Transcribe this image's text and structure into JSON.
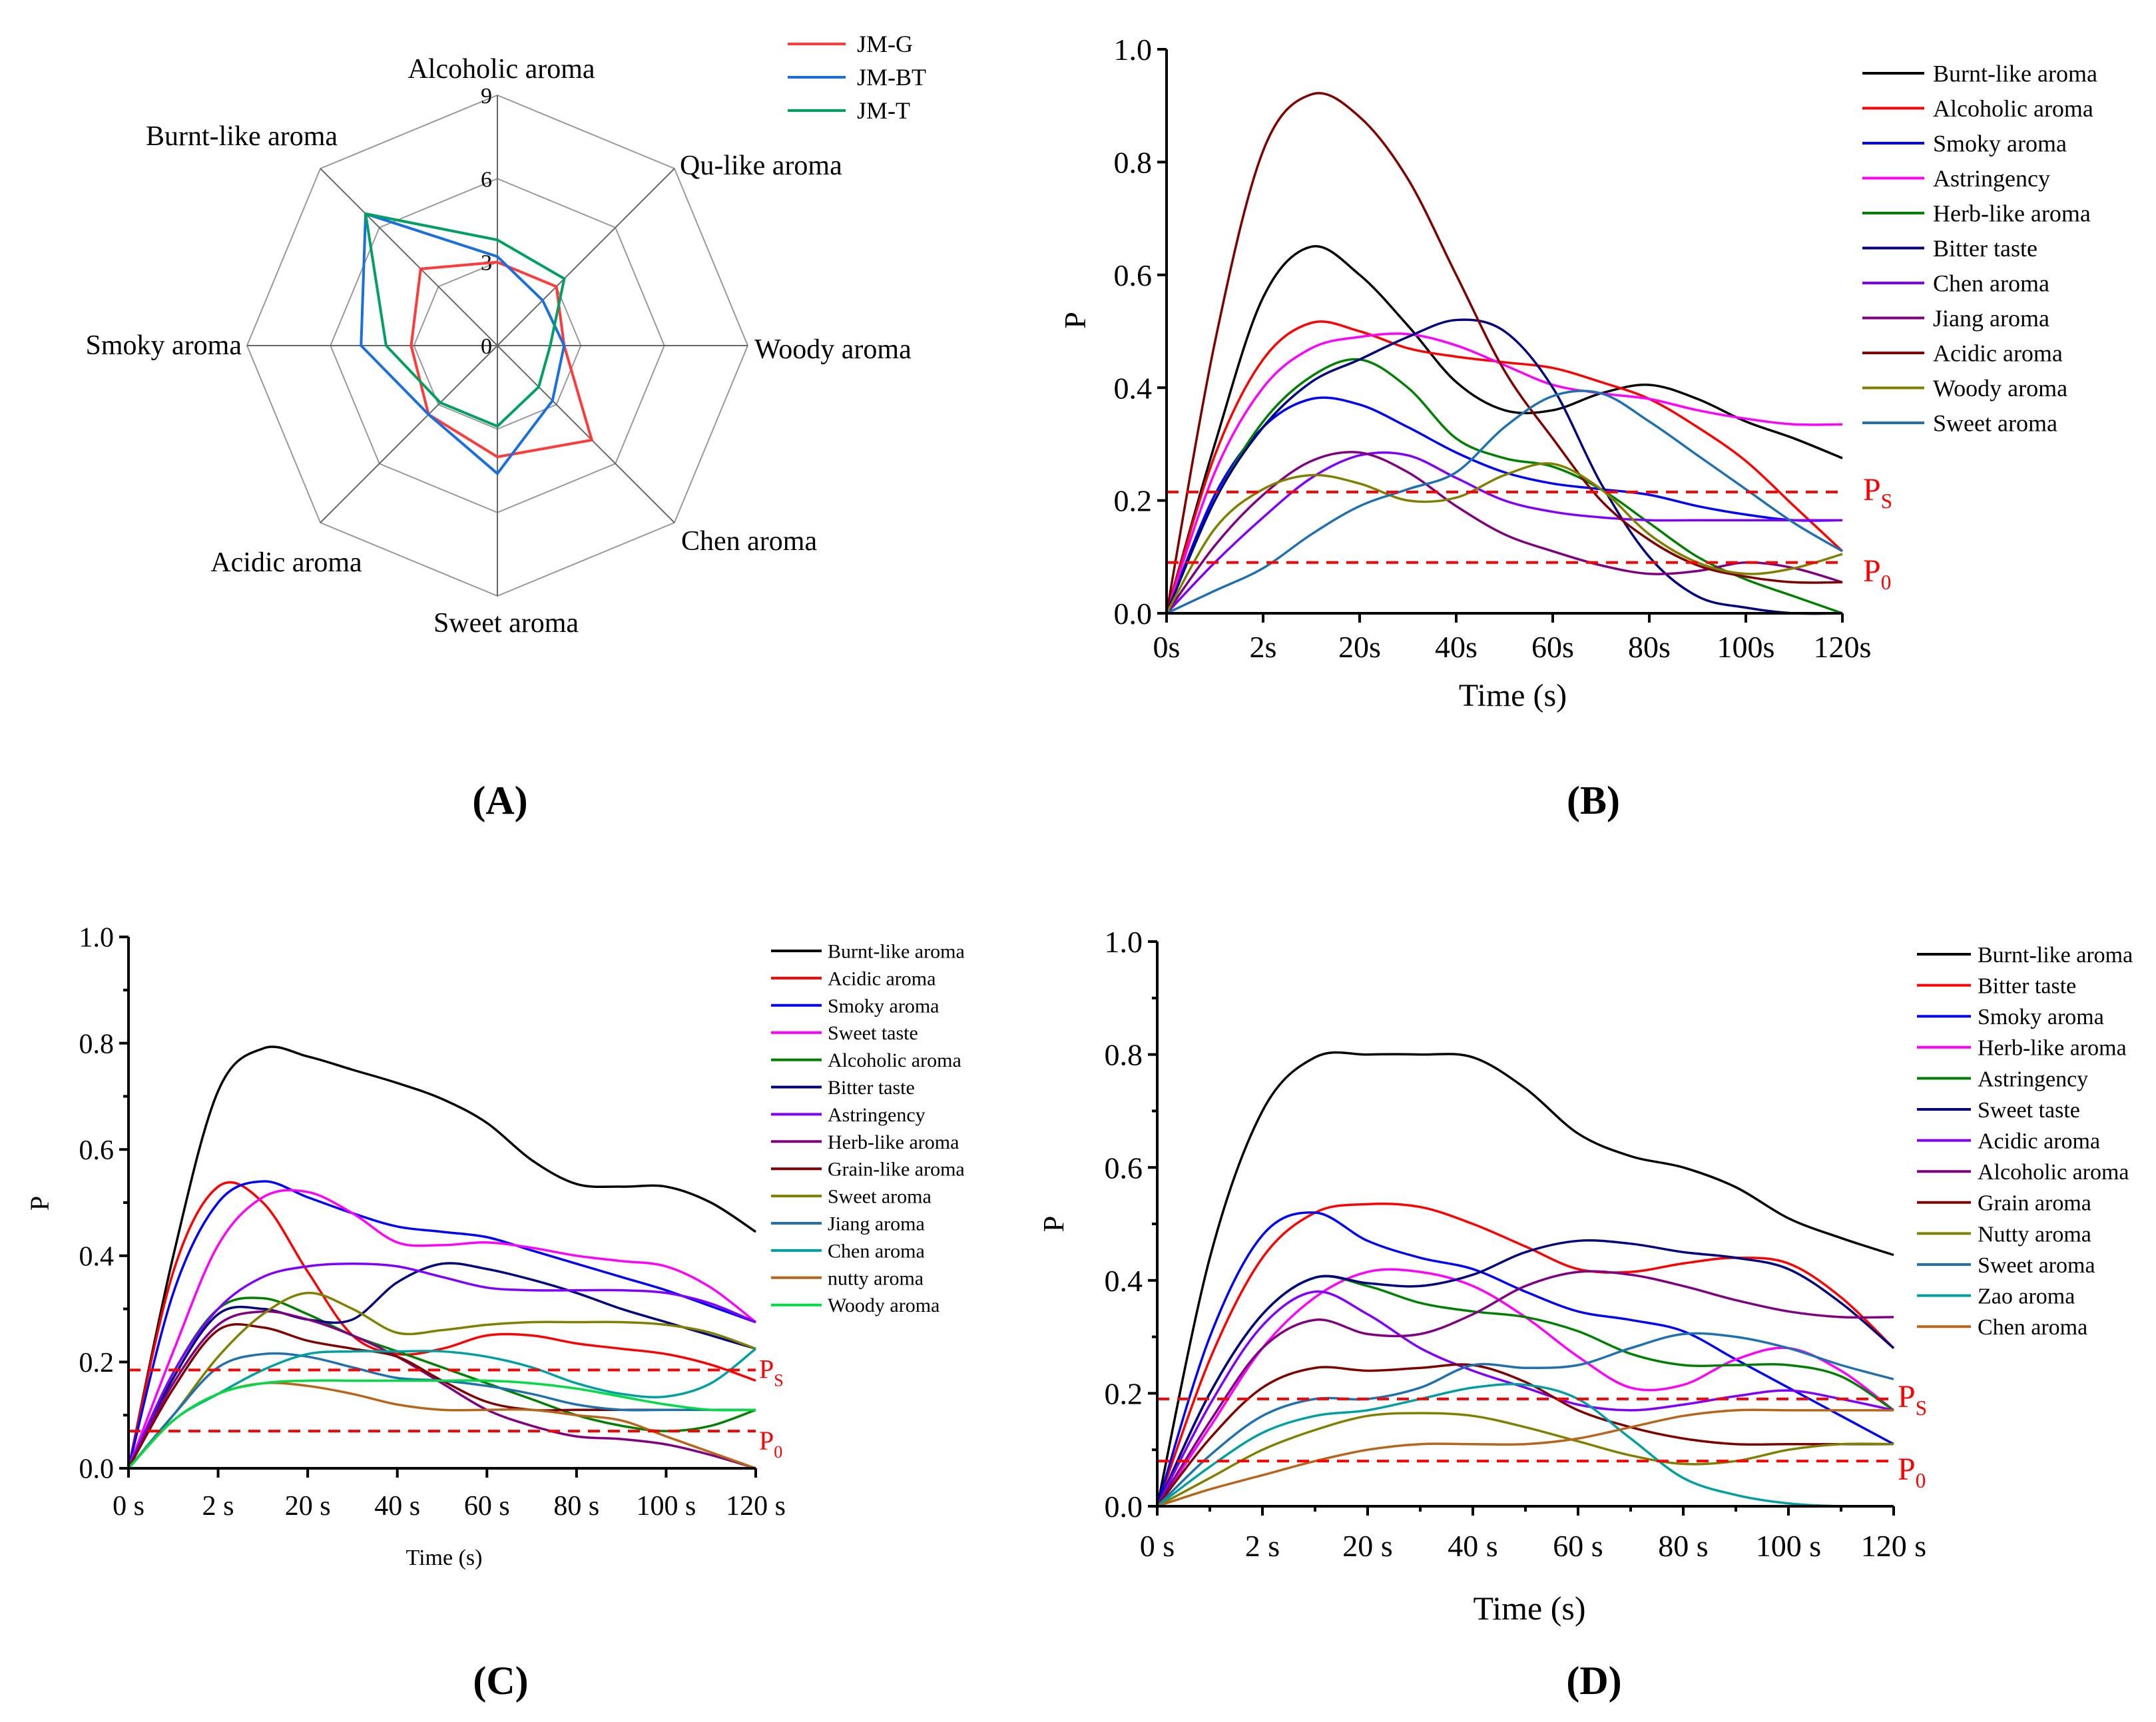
{
  "panel_labels": [
    "A",
    "B",
    "C",
    "D"
  ],
  "chart_data": [
    {
      "type": "radar",
      "panel": "(A)",
      "axes": [
        "Alcoholic aroma",
        "Qu-like aroma",
        "Woody aroma",
        "Chen aroma",
        "Sweet aroma",
        "Acidic aroma",
        "Smoky aroma",
        "Burnt-like aroma"
      ],
      "r_ticks": [
        0,
        3,
        6,
        9
      ],
      "rlim": [
        0,
        9
      ],
      "legend_position": "top-right",
      "series": [
        {
          "name": "JM-G",
          "color": "#ff3a3a",
          "values": [
            3.0,
            3.0,
            2.4,
            4.8,
            4.0,
            3.5,
            3.1,
            3.9
          ]
        },
        {
          "name": "JM-BT",
          "color": "#1a6fe0",
          "values": [
            3.2,
            2.3,
            2.4,
            2.8,
            4.6,
            3.5,
            4.9,
            6.7
          ]
        },
        {
          "name": "JM-T",
          "color": "#00a060",
          "values": [
            3.8,
            3.4,
            1.9,
            2.1,
            2.9,
            2.9,
            4.0,
            6.7
          ]
        }
      ]
    },
    {
      "type": "line",
      "panel": "(B)",
      "xlabel": "Time (s)",
      "ylabel": "P",
      "ylim": [
        0,
        1.0
      ],
      "y_ticks": [
        "0.0",
        "0.2",
        "0.4",
        "0.6",
        "0.8",
        "1.0"
      ],
      "x_tick_labels": [
        "0s",
        "2s",
        "20s",
        "40s",
        "60s",
        "80s",
        "100s",
        "120s"
      ],
      "x": [
        0,
        0.5,
        1,
        1.5,
        2,
        2.5,
        3,
        3.5,
        4,
        4.5,
        5,
        5.5,
        6,
        6.5,
        7
      ],
      "legend_position": "right",
      "thresholds": [
        {
          "label": "P",
          "sub": "S",
          "value": 0.215
        },
        {
          "label": "P",
          "sub": "0",
          "value": 0.09
        }
      ],
      "series": [
        {
          "name": "Burnt-like aroma",
          "color": "#000000",
          "values": [
            0,
            0.3,
            0.56,
            0.65,
            0.6,
            0.51,
            0.41,
            0.36,
            0.36,
            0.39,
            0.405,
            0.38,
            0.34,
            0.31,
            0.275
          ]
        },
        {
          "name": "Alcoholic aroma",
          "color": "#ff0000",
          "values": [
            0,
            0.28,
            0.45,
            0.515,
            0.5,
            0.47,
            0.455,
            0.445,
            0.435,
            0.41,
            0.38,
            0.33,
            0.27,
            0.19,
            0.11
          ]
        },
        {
          "name": "Smoky aroma",
          "color": "#0000ff",
          "values": [
            0,
            0.21,
            0.33,
            0.38,
            0.37,
            0.33,
            0.285,
            0.25,
            0.23,
            0.22,
            0.21,
            0.19,
            0.175,
            0.165,
            0.165
          ]
        },
        {
          "name": "Astringency",
          "color": "#ff00ff",
          "values": [
            0,
            0.25,
            0.4,
            0.47,
            0.49,
            0.495,
            0.475,
            0.44,
            0.405,
            0.39,
            0.38,
            0.36,
            0.345,
            0.335,
            0.335
          ]
        },
        {
          "name": "Herb-like aroma",
          "color": "#008000",
          "values": [
            0,
            0.2,
            0.34,
            0.42,
            0.45,
            0.4,
            0.31,
            0.275,
            0.26,
            0.22,
            0.16,
            0.1,
            0.06,
            0.03,
            0.0
          ]
        },
        {
          "name": "Bitter taste",
          "color": "#000080",
          "values": [
            0,
            0.2,
            0.33,
            0.41,
            0.45,
            0.49,
            0.52,
            0.5,
            0.4,
            0.23,
            0.1,
            0.03,
            0.01,
            0.0,
            0.0
          ]
        },
        {
          "name": "Chen aroma",
          "color": "#8000ff",
          "values": [
            0,
            0.09,
            0.17,
            0.24,
            0.28,
            0.28,
            0.24,
            0.2,
            0.18,
            0.17,
            0.165,
            0.165,
            0.165,
            0.165,
            0.165
          ]
        },
        {
          "name": "Jiang aroma",
          "color": "#800080",
          "values": [
            0,
            0.12,
            0.21,
            0.27,
            0.285,
            0.25,
            0.19,
            0.14,
            0.11,
            0.085,
            0.07,
            0.075,
            0.09,
            0.08,
            0.055
          ]
        },
        {
          "name": "Acidic aroma",
          "color": "#800000",
          "values": [
            0,
            0.48,
            0.82,
            0.92,
            0.88,
            0.77,
            0.6,
            0.43,
            0.31,
            0.2,
            0.13,
            0.085,
            0.065,
            0.055,
            0.055
          ]
        },
        {
          "name": "Woody aroma",
          "color": "#808000",
          "values": [
            0,
            0.15,
            0.22,
            0.245,
            0.23,
            0.2,
            0.205,
            0.245,
            0.265,
            0.22,
            0.14,
            0.09,
            0.07,
            0.08,
            0.105
          ]
        },
        {
          "name": "Sweet aroma",
          "color": "#1f70b0",
          "values": [
            0,
            0.04,
            0.08,
            0.14,
            0.19,
            0.22,
            0.25,
            0.33,
            0.385,
            0.39,
            0.34,
            0.28,
            0.22,
            0.16,
            0.11
          ]
        }
      ]
    },
    {
      "type": "line",
      "panel": "(C)",
      "xlabel": "Time (s)",
      "ylabel": "P",
      "ylim": [
        0,
        1.0
      ],
      "y_ticks": [
        "0.0",
        "0.2",
        "0.4",
        "0.6",
        "0.8",
        "1.0"
      ],
      "x_tick_labels": [
        "0 s",
        "2 s",
        "20 s",
        "40 s",
        "60 s",
        "80 s",
        "100 s",
        "120 s"
      ],
      "x": [
        0,
        0.5,
        1,
        1.5,
        2,
        2.5,
        3,
        3.5,
        4,
        4.5,
        5,
        5.5,
        6,
        6.5,
        7
      ],
      "legend_position": "right",
      "thresholds": [
        {
          "label": "P",
          "sub": "S",
          "value": 0.185
        },
        {
          "label": "P",
          "sub": "0",
          "value": 0.07
        }
      ],
      "series": [
        {
          "name": "Burnt-like aroma",
          "color": "#000000",
          "values": [
            0,
            0.4,
            0.71,
            0.79,
            0.775,
            0.75,
            0.725,
            0.695,
            0.65,
            0.58,
            0.535,
            0.53,
            0.53,
            0.5,
            0.445
          ]
        },
        {
          "name": "Acidic aroma",
          "color": "#ff0000",
          "values": [
            0,
            0.37,
            0.53,
            0.5,
            0.37,
            0.25,
            0.215,
            0.225,
            0.25,
            0.25,
            0.235,
            0.225,
            0.215,
            0.195,
            0.165
          ]
        },
        {
          "name": "Smoky aroma",
          "color": "#0000ff",
          "values": [
            0,
            0.33,
            0.5,
            0.54,
            0.51,
            0.48,
            0.455,
            0.445,
            0.435,
            0.41,
            0.385,
            0.36,
            0.335,
            0.305,
            0.275
          ]
        },
        {
          "name": "Sweet taste",
          "color": "#ff00ff",
          "values": [
            0,
            0.22,
            0.42,
            0.51,
            0.52,
            0.48,
            0.425,
            0.42,
            0.425,
            0.415,
            0.4,
            0.39,
            0.38,
            0.34,
            0.275
          ]
        },
        {
          "name": "Alcoholic aroma",
          "color": "#008000",
          "values": [
            0,
            0.18,
            0.3,
            0.32,
            0.29,
            0.25,
            0.22,
            0.19,
            0.16,
            0.13,
            0.1,
            0.08,
            0.07,
            0.08,
            0.11
          ]
        },
        {
          "name": "Bitter taste",
          "color": "#000080",
          "values": [
            0,
            0.17,
            0.29,
            0.3,
            0.28,
            0.28,
            0.35,
            0.385,
            0.375,
            0.355,
            0.33,
            0.3,
            0.275,
            0.25,
            0.225
          ]
        },
        {
          "name": "Astringency",
          "color": "#8000ff",
          "values": [
            0,
            0.18,
            0.3,
            0.36,
            0.38,
            0.385,
            0.38,
            0.36,
            0.34,
            0.335,
            0.335,
            0.335,
            0.33,
            0.31,
            0.275
          ]
        },
        {
          "name": "Herb-like aroma",
          "color": "#800080",
          "values": [
            0,
            0.16,
            0.27,
            0.295,
            0.28,
            0.25,
            0.21,
            0.16,
            0.11,
            0.08,
            0.06,
            0.055,
            0.045,
            0.025,
            0.0
          ]
        },
        {
          "name": "Grain-like aroma",
          "color": "#800000",
          "values": [
            0,
            0.15,
            0.26,
            0.265,
            0.24,
            0.225,
            0.21,
            0.165,
            0.125,
            0.11,
            0.11,
            0.11,
            0.11,
            0.11,
            0.11
          ]
        },
        {
          "name": "Sweet aroma",
          "color": "#808000",
          "values": [
            0,
            0.1,
            0.21,
            0.29,
            0.33,
            0.3,
            0.255,
            0.26,
            0.27,
            0.275,
            0.275,
            0.275,
            0.27,
            0.255,
            0.225
          ]
        },
        {
          "name": "Jiang aroma",
          "color": "#1f70b0",
          "values": [
            0,
            0.1,
            0.19,
            0.215,
            0.21,
            0.19,
            0.17,
            0.165,
            0.155,
            0.14,
            0.12,
            0.11,
            0.11,
            0.11,
            0.11
          ]
        },
        {
          "name": "Chen aroma",
          "color": "#00a0a0",
          "values": [
            0,
            0.09,
            0.14,
            0.185,
            0.215,
            0.22,
            0.22,
            0.22,
            0.21,
            0.19,
            0.16,
            0.14,
            0.135,
            0.16,
            0.225
          ]
        },
        {
          "name": "nutty aroma",
          "color": "#b8651a",
          "values": [
            0,
            0.09,
            0.14,
            0.16,
            0.155,
            0.14,
            0.12,
            0.11,
            0.11,
            0.11,
            0.1,
            0.09,
            0.06,
            0.03,
            0.0
          ]
        },
        {
          "name": "Woody aroma",
          "color": "#00dd44",
          "values": [
            0,
            0.09,
            0.14,
            0.16,
            0.165,
            0.165,
            0.165,
            0.165,
            0.165,
            0.16,
            0.15,
            0.135,
            0.12,
            0.11,
            0.11
          ]
        }
      ]
    },
    {
      "type": "line",
      "panel": "(D)",
      "xlabel": "Time (s)",
      "ylabel": "P",
      "ylim": [
        0,
        1.0
      ],
      "y_ticks": [
        "0.0",
        "0.2",
        "0.4",
        "0.6",
        "0.8",
        "1.0"
      ],
      "x_tick_labels": [
        "0 s",
        "2 s",
        "20 s",
        "40 s",
        "60 s",
        "80 s",
        "100 s",
        "120 s"
      ],
      "x": [
        0,
        0.5,
        1,
        1.5,
        2,
        2.5,
        3,
        3.5,
        4,
        4.5,
        5,
        5.5,
        6,
        6.5,
        7
      ],
      "legend_position": "right",
      "thresholds": [
        {
          "label": "P",
          "sub": "S",
          "value": 0.19
        },
        {
          "label": "P",
          "sub": "0",
          "value": 0.08
        }
      ],
      "series": [
        {
          "name": "Burnt-like aroma",
          "color": "#000000",
          "values": [
            0,
            0.44,
            0.7,
            0.795,
            0.8,
            0.8,
            0.795,
            0.74,
            0.66,
            0.62,
            0.6,
            0.565,
            0.51,
            0.475,
            0.445
          ]
        },
        {
          "name": "Bitter taste",
          "color": "#ff0000",
          "values": [
            0,
            0.26,
            0.44,
            0.52,
            0.535,
            0.53,
            0.5,
            0.46,
            0.42,
            0.415,
            0.43,
            0.44,
            0.43,
            0.37,
            0.28
          ]
        },
        {
          "name": "Smoky aroma",
          "color": "#0000ff",
          "values": [
            0,
            0.3,
            0.48,
            0.52,
            0.47,
            0.44,
            0.42,
            0.38,
            0.345,
            0.33,
            0.31,
            0.26,
            0.21,
            0.16,
            0.11
          ]
        },
        {
          "name": "Herb-like aroma",
          "color": "#ff00ff",
          "values": [
            0,
            0.14,
            0.28,
            0.37,
            0.415,
            0.415,
            0.39,
            0.335,
            0.265,
            0.21,
            0.215,
            0.26,
            0.28,
            0.24,
            0.17
          ]
        },
        {
          "name": "Astringency",
          "color": "#008000",
          "values": [
            0,
            0.2,
            0.34,
            0.405,
            0.39,
            0.36,
            0.345,
            0.335,
            0.31,
            0.27,
            0.25,
            0.25,
            0.25,
            0.23,
            0.17
          ]
        },
        {
          "name": "Sweet taste",
          "color": "#000080",
          "values": [
            0,
            0.2,
            0.34,
            0.405,
            0.395,
            0.39,
            0.41,
            0.45,
            0.47,
            0.465,
            0.45,
            0.44,
            0.42,
            0.36,
            0.28
          ]
        },
        {
          "name": "Acidic aroma",
          "color": "#8000ff",
          "values": [
            0,
            0.18,
            0.32,
            0.38,
            0.34,
            0.28,
            0.24,
            0.21,
            0.18,
            0.17,
            0.18,
            0.195,
            0.205,
            0.19,
            0.17
          ]
        },
        {
          "name": "Alcoholic aroma",
          "color": "#800080",
          "values": [
            0,
            0.15,
            0.28,
            0.33,
            0.305,
            0.305,
            0.34,
            0.39,
            0.415,
            0.41,
            0.39,
            0.365,
            0.345,
            0.335,
            0.335
          ]
        },
        {
          "name": "Grain aroma",
          "color": "#800000",
          "values": [
            0,
            0.12,
            0.21,
            0.245,
            0.24,
            0.245,
            0.25,
            0.22,
            0.17,
            0.14,
            0.12,
            0.11,
            0.11,
            0.11,
            0.11
          ]
        },
        {
          "name": "Nutty aroma",
          "color": "#808000",
          "values": [
            0,
            0.05,
            0.1,
            0.135,
            0.16,
            0.165,
            0.16,
            0.14,
            0.115,
            0.09,
            0.075,
            0.08,
            0.1,
            0.11,
            0.11
          ]
        },
        {
          "name": "Sweet aroma",
          "color": "#1f70b0",
          "values": [
            0,
            0.09,
            0.16,
            0.19,
            0.19,
            0.21,
            0.25,
            0.245,
            0.25,
            0.28,
            0.305,
            0.3,
            0.28,
            0.25,
            0.225
          ]
        },
        {
          "name": "Zao aroma",
          "color": "#00a0a0",
          "values": [
            0,
            0.07,
            0.13,
            0.16,
            0.17,
            0.19,
            0.21,
            0.215,
            0.19,
            0.12,
            0.05,
            0.02,
            0.005,
            0,
            0
          ]
        },
        {
          "name": "Chen aroma",
          "color": "#b8651a",
          "values": [
            0,
            0.03,
            0.055,
            0.08,
            0.1,
            0.11,
            0.11,
            0.11,
            0.12,
            0.14,
            0.16,
            0.17,
            0.17,
            0.17,
            0.17
          ]
        }
      ]
    }
  ]
}
